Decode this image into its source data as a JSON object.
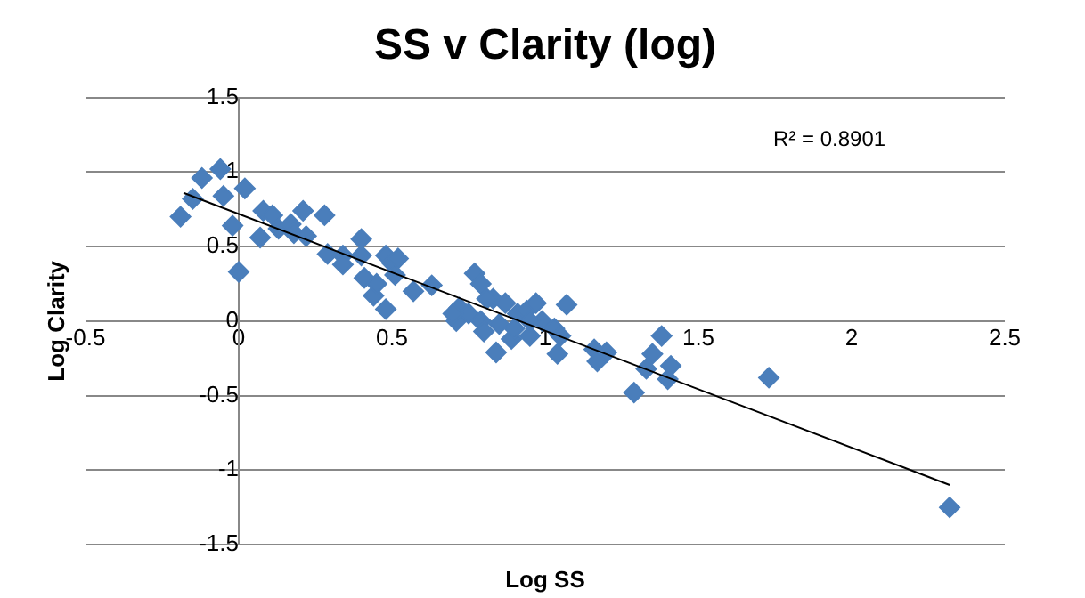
{
  "chart_data": {
    "type": "scatter",
    "title": "SS v Clarity (log)",
    "xlabel": "Log SS",
    "ylabel": "Log Clarity",
    "annotations": [
      "R² = 0.8901"
    ],
    "xlim": [
      -0.5,
      2.5
    ],
    "xticks": [
      -0.5,
      0,
      0.5,
      1,
      1.5,
      2,
      2.5
    ],
    "ylim": [
      -1.5,
      1.5
    ],
    "yticks": [
      -1.5,
      -1,
      -0.5,
      0,
      0.5,
      1,
      1.5
    ],
    "grid": "y",
    "legend": false,
    "marker": "diamond",
    "series": [
      {
        "color": "#4a7ebb",
        "x": [
          -0.19,
          -0.15,
          -0.12,
          -0.06,
          -0.05,
          -0.02,
          0.02,
          0.0,
          0.07,
          0.08,
          0.11,
          0.13,
          0.17,
          0.18,
          0.21,
          0.22,
          0.28,
          0.29,
          0.34,
          0.34,
          0.4,
          0.4,
          0.41,
          0.44,
          0.45,
          0.48,
          0.48,
          0.5,
          0.51,
          0.52,
          0.57,
          0.63,
          0.71,
          0.72,
          0.75,
          0.77,
          0.79,
          0.79,
          0.8,
          0.83,
          0.84,
          0.85,
          0.87,
          0.89,
          0.91,
          0.94,
          0.95,
          0.97,
          0.99,
          1.03,
          1.04,
          1.05,
          1.07,
          1.16,
          1.17,
          1.2,
          1.29,
          1.33,
          1.35,
          1.38,
          1.4,
          1.41,
          1.73,
          2.32,
          0.9,
          0.81,
          0.95,
          0.7
        ],
        "values": [
          0.7,
          0.82,
          0.96,
          1.02,
          0.84,
          0.64,
          0.89,
          0.33,
          0.56,
          0.74,
          0.71,
          0.62,
          0.65,
          0.59,
          0.74,
          0.57,
          0.71,
          0.45,
          0.44,
          0.38,
          0.44,
          0.55,
          0.29,
          0.17,
          0.25,
          0.44,
          0.08,
          0.39,
          0.31,
          0.42,
          0.2,
          0.24,
          0.0,
          0.09,
          0.05,
          0.32,
          0.25,
          0.0,
          -0.07,
          0.15,
          -0.21,
          -0.02,
          0.12,
          -0.12,
          0.05,
          0.07,
          -0.1,
          0.12,
          0.0,
          -0.05,
          -0.22,
          -0.1,
          0.11,
          -0.19,
          -0.27,
          -0.21,
          -0.48,
          -0.32,
          -0.22,
          -0.1,
          -0.39,
          -0.3,
          -0.38,
          -1.25,
          -0.05,
          0.15,
          0.0,
          0.05
        ]
      },
      {
        "type": "line",
        "color": "#000000",
        "line_style": "solid",
        "marker": "none",
        "x": [
          -0.18,
          2.32
        ],
        "values": [
          0.86,
          -1.1
        ]
      }
    ]
  }
}
